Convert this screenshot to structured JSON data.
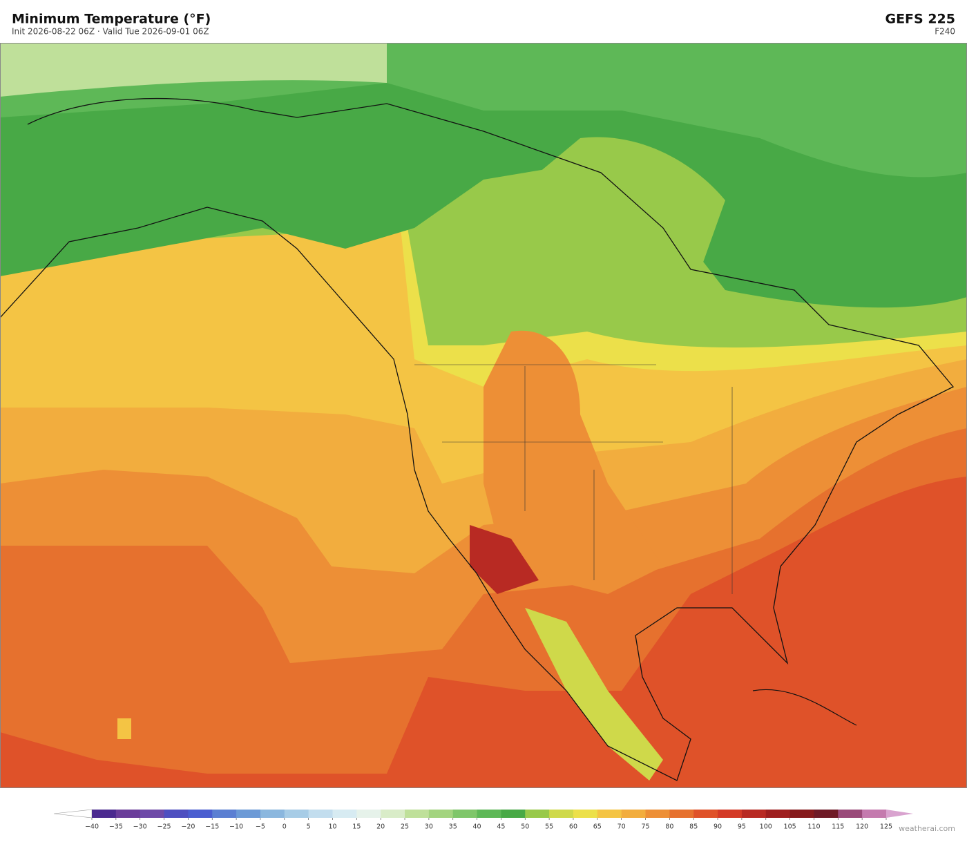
{
  "header": {
    "title": "Minimum Temperature  (°F)",
    "subtitle": "Init 2026-08-22 06Z   ·   Valid Tue 2026-09-01 06Z",
    "model": "GEFS  225",
    "forecast_hour": "F240"
  },
  "colorbar": {
    "ticks": [
      "−40",
      "−35",
      "−30",
      "−25",
      "−20",
      "−15",
      "−10",
      "−5",
      "0",
      "5",
      "10",
      "15",
      "20",
      "25",
      "30",
      "35",
      "40",
      "45",
      "50",
      "55",
      "60",
      "65",
      "70",
      "75",
      "80",
      "85",
      "90",
      "95",
      "100",
      "105",
      "110",
      "115",
      "120",
      "125"
    ],
    "colors": [
      "#4b2a8f",
      "#6a3d9a",
      "#6e4aa8",
      "#4e4fc0",
      "#4a5ed0",
      "#5b7fd2",
      "#6c9ad6",
      "#8bb7de",
      "#a7cce6",
      "#c2ddee",
      "#d7ebf2",
      "#e6f2ea",
      "#d9ecc8",
      "#bfe09a",
      "#a3d47f",
      "#7fc66a",
      "#5eb857",
      "#48a946",
      "#98c94a",
      "#cfd94a",
      "#ece04a",
      "#f4c444",
      "#f2ad3e",
      "#ed8f36",
      "#e6712e",
      "#df5229",
      "#d43a26",
      "#b82a23",
      "#9e1e1e",
      "#861a1c",
      "#6e1a26",
      "#9a4a7a",
      "#c47aae"
    ],
    "over_color": "#d9a3cf",
    "under_color": "#ffffff"
  },
  "footer": {
    "credit": "weatherai.com"
  }
}
